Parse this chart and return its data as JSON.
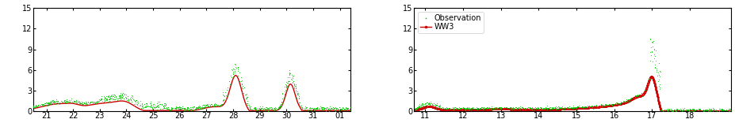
{
  "left": {
    "xlim": [
      20.5,
      32.4
    ],
    "xticks": [
      21,
      22,
      23,
      24,
      25,
      26,
      27,
      28,
      29,
      30,
      31,
      32
    ],
    "xticklabels": [
      "21",
      "22",
      "23",
      "24",
      "25",
      "26",
      "27",
      "28",
      "29",
      "30",
      "31",
      "01"
    ],
    "ylim": [
      0,
      15
    ],
    "yticks": [
      0,
      3,
      6,
      9,
      12,
      15
    ]
  },
  "right": {
    "xlim": [
      10.7,
      19.1
    ],
    "xticks": [
      11,
      12,
      13,
      14,
      15,
      16,
      17,
      18
    ],
    "xticklabels": [
      "11",
      "12",
      "13",
      "14",
      "15",
      "16",
      "17",
      "18"
    ],
    "ylim": [
      0,
      15
    ],
    "yticks": [
      0,
      3,
      6,
      9,
      12,
      15
    ]
  },
  "obs_color": "#00cc00",
  "ww3_color": "#cc0000",
  "obs_markersize": 1.5,
  "ww3_linewidth": 1.0,
  "ww3_markersize": 1.5,
  "legend_fontsize": 7,
  "tick_fontsize": 7,
  "background_color": "#ffffff"
}
